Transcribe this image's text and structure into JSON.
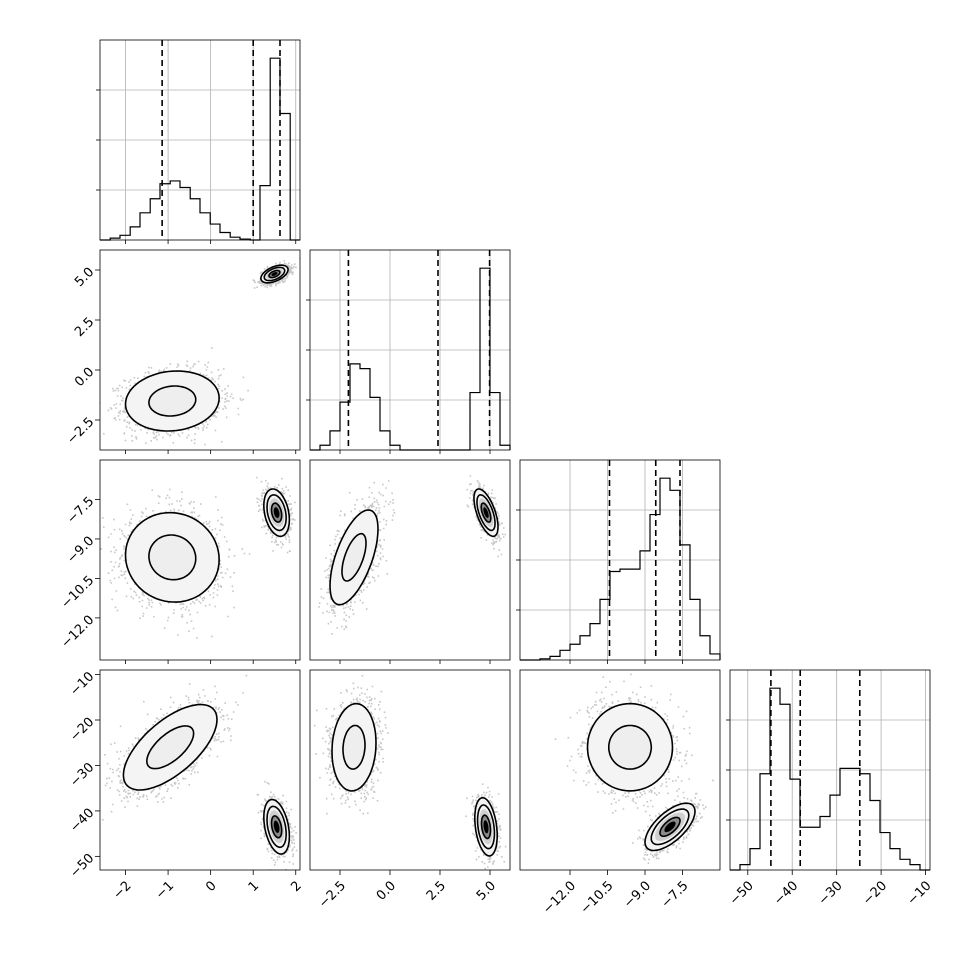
{
  "figure": {
    "type": "corner-plot",
    "n_params": 4
  },
  "chart_data": [
    {
      "type": "histogram",
      "row": 0,
      "col": 0,
      "xlim": [
        -2.6,
        2.1
      ],
      "bins": [
        -2.6,
        -2.36,
        -2.13,
        -1.89,
        -1.66,
        -1.42,
        -1.19,
        -0.95,
        -0.72,
        -0.48,
        -0.25,
        -0.01,
        0.22,
        0.46,
        0.69,
        0.93,
        1.16,
        1.4,
        1.63,
        1.87,
        2.1
      ],
      "counts": [
        0,
        2,
        5,
        14,
        29,
        44,
        60,
        63,
        56,
        44,
        29,
        17,
        8,
        3,
        1,
        0,
        58,
        194,
        135,
        0
      ],
      "quantiles": [
        -1.14,
        1.0,
        1.63
      ],
      "grid": true
    },
    {
      "type": "histogram",
      "row": 1,
      "col": 1,
      "xlim": [
        -4.0,
        6.0
      ],
      "bins": [
        -4.0,
        -3.5,
        -3.0,
        -2.5,
        -2.0,
        -1.5,
        -1.0,
        -0.5,
        0.0,
        0.5,
        1.0,
        1.5,
        2.0,
        2.5,
        3.0,
        3.5,
        4.0,
        4.5,
        5.0,
        5.5,
        6.0
      ],
      "counts": [
        0,
        5,
        20,
        50,
        90,
        85,
        55,
        20,
        5,
        0,
        0,
        0,
        0,
        0,
        0,
        0,
        60,
        190,
        60,
        5
      ],
      "quantiles": [
        -2.08,
        2.4,
        4.98
      ],
      "grid": true
    },
    {
      "type": "histogram",
      "row": 2,
      "col": 2,
      "xlim": [
        -14.0,
        -6.0
      ],
      "bins": [
        -14.0,
        -13.6,
        -13.2,
        -12.8,
        -12.4,
        -12.0,
        -11.6,
        -11.2,
        -10.8,
        -10.4,
        -10.0,
        -9.6,
        -9.2,
        -8.8,
        -8.4,
        -8.0,
        -7.6,
        -7.2,
        -6.8,
        -6.4,
        -6.0
      ],
      "counts": [
        0,
        0,
        1,
        3,
        8,
        13,
        20,
        30,
        50,
        73,
        75,
        75,
        90,
        120,
        150,
        140,
        95,
        50,
        20,
        5
      ],
      "quantiles": [
        -10.42,
        -8.57,
        -7.6
      ],
      "grid": true
    },
    {
      "type": "histogram",
      "row": 3,
      "col": 3,
      "xlim": [
        -54.0,
        -9.0
      ],
      "bins": [
        -54.0,
        -51.75,
        -49.5,
        -47.25,
        -45.0,
        -42.75,
        -40.5,
        -38.25,
        -36.0,
        -33.75,
        -31.5,
        -29.25,
        -27.0,
        -24.75,
        -22.5,
        -20.25,
        -18.0,
        -15.75,
        -13.5,
        -11.25,
        -9.0
      ],
      "counts": [
        0,
        5,
        20,
        90,
        170,
        155,
        85,
        40,
        40,
        50,
        70,
        95,
        95,
        90,
        65,
        35,
        20,
        10,
        5,
        0
      ],
      "quantiles": [
        -44.8,
        -38.2,
        -24.8
      ],
      "grid": true
    },
    {
      "type": "scatter-density",
      "row": 1,
      "col": 0,
      "xlim": [
        -2.6,
        2.1
      ],
      "ylim": [
        -4.0,
        6.0
      ],
      "modes": [
        {
          "mean": [
            -0.9,
            -1.55
          ],
          "sd": [
            0.55,
            0.75
          ],
          "rho": 0.1,
          "contour_sigma": [
            1.0,
            2.0
          ],
          "peak": false
        },
        {
          "mean": [
            1.5,
            4.8
          ],
          "sd": [
            0.16,
            0.22
          ],
          "rho": 0.5,
          "contour_sigma": [
            0.8,
            1.5,
            2.0
          ],
          "peak": true
        }
      ]
    },
    {
      "type": "scatter-density",
      "row": 2,
      "col": 0,
      "xlim": [
        -2.6,
        2.1
      ],
      "ylim": [
        -13.6,
        -6.0
      ],
      "modes": [
        {
          "mean": [
            -0.9,
            -9.7
          ],
          "sd": [
            0.55,
            0.85
          ],
          "rho": -0.05,
          "contour_sigma": [
            1.0,
            2.0
          ],
          "peak": false
        },
        {
          "mean": [
            1.55,
            -8.0
          ],
          "sd": [
            0.15,
            0.45
          ],
          "rho": -0.3,
          "contour_sigma": [
            0.8,
            1.5,
            2.0
          ],
          "peak": true
        }
      ]
    },
    {
      "type": "scatter-density",
      "row": 2,
      "col": 1,
      "xlim": [
        -4.0,
        6.0
      ],
      "ylim": [
        -13.6,
        -6.0
      ],
      "modes": [
        {
          "mean": [
            -1.8,
            -9.7
          ],
          "sd": [
            0.6,
            0.9
          ],
          "rho": 0.6,
          "contour_sigma": [
            1.0,
            2.0
          ],
          "peak": false
        },
        {
          "mean": [
            4.8,
            -8.0
          ],
          "sd": [
            0.3,
            0.45
          ],
          "rho": -0.6,
          "contour_sigma": [
            0.8,
            1.5,
            2.0
          ],
          "peak": true
        }
      ]
    },
    {
      "type": "scatter-density",
      "row": 3,
      "col": 0,
      "xlim": [
        -2.6,
        2.1
      ],
      "ylim": [
        -53.0,
        -9.0
      ],
      "modes": [
        {
          "mean": [
            -0.95,
            -26.0
          ],
          "sd": [
            0.55,
            4.7
          ],
          "rho": 0.65,
          "contour_sigma": [
            1.0,
            2.0
          ],
          "peak": false
        },
        {
          "mean": [
            1.55,
            -43.5
          ],
          "sd": [
            0.15,
            3.0
          ],
          "rho": -0.35,
          "contour_sigma": [
            0.8,
            1.5,
            2.0
          ],
          "peak": true
        }
      ]
    },
    {
      "type": "scatter-density",
      "row": 3,
      "col": 1,
      "xlim": [
        -4.0,
        6.0
      ],
      "ylim": [
        -53.0,
        -9.0
      ],
      "modes": [
        {
          "mean": [
            -1.8,
            -26.0
          ],
          "sd": [
            0.55,
            4.8
          ],
          "rho": 0.1,
          "contour_sigma": [
            1.0,
            2.0
          ],
          "peak": false
        },
        {
          "mean": [
            4.8,
            -43.5
          ],
          "sd": [
            0.28,
            3.2
          ],
          "rho": -0.3,
          "contour_sigma": [
            0.8,
            1.5,
            2.0
          ],
          "peak": true
        }
      ]
    },
    {
      "type": "scatter-density",
      "row": 3,
      "col": 2,
      "xlim": [
        -14.0,
        -6.0
      ],
      "ylim": [
        -53.0,
        -9.0
      ],
      "modes": [
        {
          "mean": [
            -9.6,
            -26.0
          ],
          "sd": [
            0.85,
            4.8
          ],
          "rho": 0.0,
          "contour_sigma": [
            1.0,
            2.0
          ],
          "peak": false
        },
        {
          "mean": [
            -8.0,
            -43.5
          ],
          "sd": [
            0.5,
            2.6
          ],
          "rho": 0.65,
          "contour_sigma": [
            0.8,
            1.5,
            2.0
          ],
          "peak": true
        }
      ]
    }
  ],
  "axes": {
    "rows": [
      {
        "yticks": []
      },
      {
        "yticks": [
          "5.0",
          "2.5",
          "0.0",
          "−2.5"
        ],
        "ytick_values": [
          5.0,
          2.5,
          0.0,
          -2.5
        ]
      },
      {
        "yticks": [
          "−7.5",
          "−9.0",
          "−10.5",
          "−12.0"
        ],
        "ytick_values": [
          -7.5,
          -9.0,
          -10.5,
          -12.0
        ]
      },
      {
        "yticks": [
          "−10",
          "−20",
          "−30",
          "−40",
          "−50"
        ],
        "ytick_values": [
          -10,
          -20,
          -30,
          -40,
          -50
        ]
      }
    ],
    "cols": [
      {
        "xticks": [
          "−2",
          "−1",
          "0",
          "1",
          "2"
        ],
        "xtick_values": [
          -2,
          -1,
          0,
          1,
          2
        ]
      },
      {
        "xticks": [
          "−2.5",
          "0.0",
          "2.5",
          "5.0"
        ],
        "xtick_values": [
          -2.5,
          0.0,
          2.5,
          5.0
        ]
      },
      {
        "xticks": [
          "−12.0",
          "−10.5",
          "−9.0",
          "−7.5"
        ],
        "xtick_values": [
          -12.0,
          -10.5,
          -9.0,
          -7.5
        ]
      },
      {
        "xticks": [
          "−50",
          "−40",
          "−30",
          "−20",
          "−10"
        ],
        "xtick_values": [
          -50,
          -40,
          -30,
          -20,
          -10
        ]
      }
    ]
  }
}
